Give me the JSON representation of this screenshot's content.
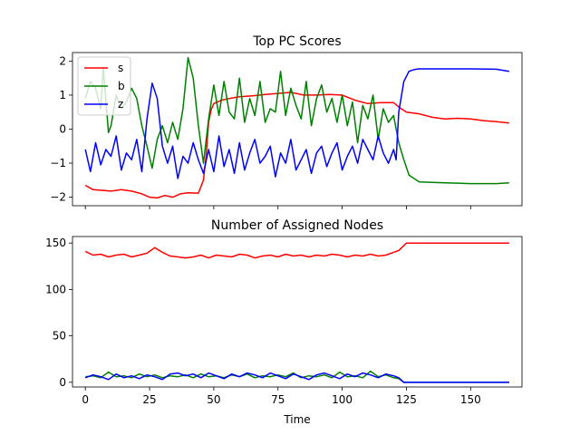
{
  "chart_data": [
    {
      "type": "line",
      "title": "Top PC Scores",
      "xlabel": "",
      "ylabel": "",
      "xlim": [
        -5,
        170
      ],
      "ylim": [
        -2.25,
        2.25
      ],
      "yticks": [
        -2,
        -1,
        0,
        1,
        2
      ],
      "ytick_labels": [
        "−2",
        "−1",
        "0",
        "1",
        "2"
      ],
      "xticks": [
        0,
        25,
        50,
        75,
        100,
        125,
        150
      ],
      "xtick_labels_shown": false,
      "grid": false,
      "legend": {
        "placement": "top-left",
        "entries": [
          "s",
          "b",
          "z"
        ]
      },
      "series": [
        {
          "name": "s",
          "color": "#ff0000",
          "x": [
            0,
            3,
            7,
            10,
            14,
            18,
            22,
            25,
            28,
            31,
            34,
            37,
            40,
            44,
            46,
            47,
            48,
            49,
            50,
            53,
            56,
            60,
            65,
            70,
            75,
            80,
            85,
            90,
            95,
            100,
            105,
            110,
            115,
            120,
            122,
            125,
            130,
            135,
            140,
            145,
            150,
            155,
            160,
            165
          ],
          "values": [
            -1.65,
            -1.78,
            -1.8,
            -1.82,
            -1.78,
            -1.82,
            -1.9,
            -2.0,
            -2.02,
            -1.95,
            -2.0,
            -1.9,
            -1.87,
            -1.88,
            -1.5,
            -0.8,
            0.2,
            0.58,
            0.75,
            0.85,
            0.9,
            0.95,
            0.98,
            1.02,
            1.05,
            1.08,
            1.0,
            1.0,
            1.02,
            1.0,
            0.85,
            0.75,
            0.78,
            0.78,
            0.65,
            0.5,
            0.45,
            0.35,
            0.3,
            0.32,
            0.3,
            0.25,
            0.22,
            0.18
          ]
        },
        {
          "name": "b",
          "color": "#008000",
          "x": [
            0,
            2,
            4,
            6,
            7,
            9,
            10,
            12,
            14,
            16,
            18,
            20,
            22,
            24,
            26,
            28,
            30,
            32,
            34,
            36,
            38,
            40,
            42,
            44,
            46,
            48,
            50,
            52,
            54,
            56,
            58,
            60,
            62,
            64,
            66,
            68,
            70,
            72,
            74,
            76,
            78,
            80,
            82,
            84,
            86,
            88,
            90,
            92,
            94,
            96,
            98,
            100,
            102,
            104,
            106,
            108,
            110,
            112,
            114,
            116,
            118,
            120,
            122,
            124,
            126,
            130,
            140,
            150,
            160,
            165
          ],
          "values": [
            0.9,
            1.4,
            1.2,
            0.6,
            1.8,
            -0.1,
            0.1,
            1.0,
            0.6,
            0.8,
            1.2,
            0.9,
            0.1,
            -0.5,
            -1.15,
            -0.3,
            0.1,
            -0.4,
            0.2,
            -0.3,
            0.6,
            2.1,
            1.5,
            0.1,
            -1.0,
            0.3,
            1.3,
            0.4,
            1.4,
            0.5,
            0.3,
            1.5,
            0.2,
            0.9,
            0.4,
            1.4,
            0.2,
            0.6,
            0.5,
            1.7,
            0.4,
            1.2,
            0.7,
            0.3,
            1.4,
            0.1,
            0.9,
            1.3,
            0.5,
            0.9,
            0.2,
            1.0,
            0.1,
            0.8,
            -0.4,
            0.7,
            0.3,
            1.0,
            -0.3,
            0.6,
            0.2,
            0.4,
            -0.4,
            -0.9,
            -1.35,
            -1.55,
            -1.58,
            -1.6,
            -1.6,
            -1.58
          ]
        },
        {
          "name": "z",
          "color": "#0000ff",
          "x": [
            0,
            2,
            4,
            6,
            8,
            10,
            12,
            14,
            16,
            18,
            20,
            22,
            24,
            26,
            28,
            30,
            32,
            34,
            36,
            38,
            40,
            42,
            44,
            46,
            48,
            50,
            52,
            54,
            56,
            58,
            60,
            62,
            64,
            66,
            68,
            70,
            72,
            74,
            76,
            78,
            80,
            82,
            84,
            86,
            88,
            90,
            92,
            94,
            96,
            98,
            100,
            102,
            104,
            106,
            108,
            110,
            112,
            114,
            116,
            118,
            120,
            121,
            122,
            124,
            126,
            128,
            130,
            140,
            150,
            160,
            165
          ],
          "values": [
            -0.6,
            -1.25,
            -0.4,
            -1.05,
            -0.6,
            -0.8,
            -0.2,
            -1.2,
            -0.7,
            -0.9,
            -0.3,
            -1.25,
            0.3,
            1.35,
            0.9,
            -0.5,
            -1.0,
            -0.5,
            -1.45,
            -0.8,
            -1.0,
            -0.4,
            -0.9,
            -1.3,
            -0.6,
            -1.25,
            -0.2,
            -1.1,
            -0.6,
            -1.3,
            -0.4,
            -1.2,
            -0.7,
            -0.3,
            -1.0,
            -0.8,
            -0.5,
            -1.4,
            -0.7,
            -1.0,
            -0.3,
            -1.2,
            -0.9,
            -0.6,
            -1.3,
            -0.7,
            -0.5,
            -1.1,
            -0.7,
            -0.4,
            -1.2,
            -0.8,
            -0.5,
            -1.0,
            -0.3,
            -0.6,
            -0.9,
            -0.2,
            -0.7,
            -1.0,
            -0.6,
            -0.9,
            0.5,
            1.4,
            1.7,
            1.75,
            1.77,
            1.77,
            1.77,
            1.76,
            1.7
          ]
        }
      ]
    },
    {
      "type": "line",
      "title": "Number of Assigned Nodes",
      "xlabel": "Time",
      "ylabel": "",
      "xlim": [
        -5,
        170
      ],
      "ylim": [
        -5,
        157
      ],
      "xticks": [
        0,
        25,
        50,
        75,
        100,
        125,
        150
      ],
      "xtick_labels": [
        "0",
        "25",
        "50",
        "75",
        "100",
        "125",
        "150"
      ],
      "yticks": [
        0,
        50,
        100,
        150
      ],
      "ytick_labels": [
        "0",
        "50",
        "100",
        "150"
      ],
      "grid": false,
      "series": [
        {
          "name": "s",
          "color": "#ff0000",
          "x": [
            0,
            3,
            6,
            9,
            12,
            15,
            18,
            21,
            24,
            27,
            30,
            33,
            36,
            39,
            42,
            45,
            48,
            51,
            54,
            57,
            60,
            63,
            66,
            69,
            72,
            75,
            78,
            81,
            84,
            87,
            90,
            93,
            96,
            99,
            102,
            105,
            108,
            111,
            114,
            117,
            120,
            122,
            125,
            130,
            140,
            150,
            160,
            165
          ],
          "values": [
            141,
            137,
            138,
            135,
            137,
            138,
            135,
            137,
            139,
            145,
            140,
            136,
            135,
            134,
            135,
            137,
            134,
            137,
            136,
            135,
            138,
            137,
            134,
            136,
            137,
            135,
            138,
            136,
            137,
            135,
            137,
            136,
            138,
            137,
            135,
            137,
            136,
            138,
            136,
            137,
            140,
            142,
            150,
            150,
            150,
            150,
            150,
            150
          ]
        },
        {
          "name": "b",
          "color": "#008000",
          "x": [
            0,
            3,
            6,
            9,
            12,
            15,
            18,
            21,
            24,
            27,
            30,
            33,
            36,
            39,
            42,
            45,
            48,
            51,
            54,
            57,
            60,
            63,
            66,
            69,
            72,
            75,
            78,
            81,
            84,
            87,
            90,
            93,
            96,
            99,
            102,
            105,
            108,
            111,
            114,
            117,
            120,
            122,
            124,
            130,
            140,
            150,
            160,
            165
          ],
          "values": [
            6,
            7,
            5,
            11,
            6,
            7,
            5,
            9,
            6,
            8,
            5,
            7,
            6,
            8,
            5,
            9,
            6,
            7,
            5,
            8,
            6,
            9,
            5,
            7,
            6,
            8,
            6,
            10,
            5,
            7,
            6,
            8,
            5,
            11,
            6,
            7,
            5,
            12,
            6,
            8,
            5,
            4,
            0,
            0,
            0,
            0,
            0,
            0
          ]
        },
        {
          "name": "z",
          "color": "#0000ff",
          "x": [
            0,
            3,
            6,
            9,
            12,
            15,
            18,
            21,
            24,
            27,
            30,
            33,
            36,
            39,
            42,
            45,
            48,
            51,
            54,
            57,
            60,
            63,
            66,
            69,
            72,
            75,
            78,
            81,
            84,
            87,
            90,
            93,
            96,
            99,
            102,
            105,
            108,
            111,
            114,
            117,
            120,
            122,
            124,
            130,
            140,
            150,
            160,
            165
          ],
          "values": [
            5,
            8,
            6,
            3,
            9,
            5,
            7,
            4,
            8,
            6,
            3,
            9,
            10,
            7,
            9,
            5,
            10,
            7,
            4,
            9,
            6,
            10,
            8,
            5,
            10,
            7,
            4,
            9,
            6,
            3,
            8,
            10,
            7,
            4,
            9,
            6,
            10,
            8,
            5,
            9,
            7,
            5,
            0,
            0,
            0,
            0,
            0,
            0
          ]
        }
      ]
    }
  ]
}
